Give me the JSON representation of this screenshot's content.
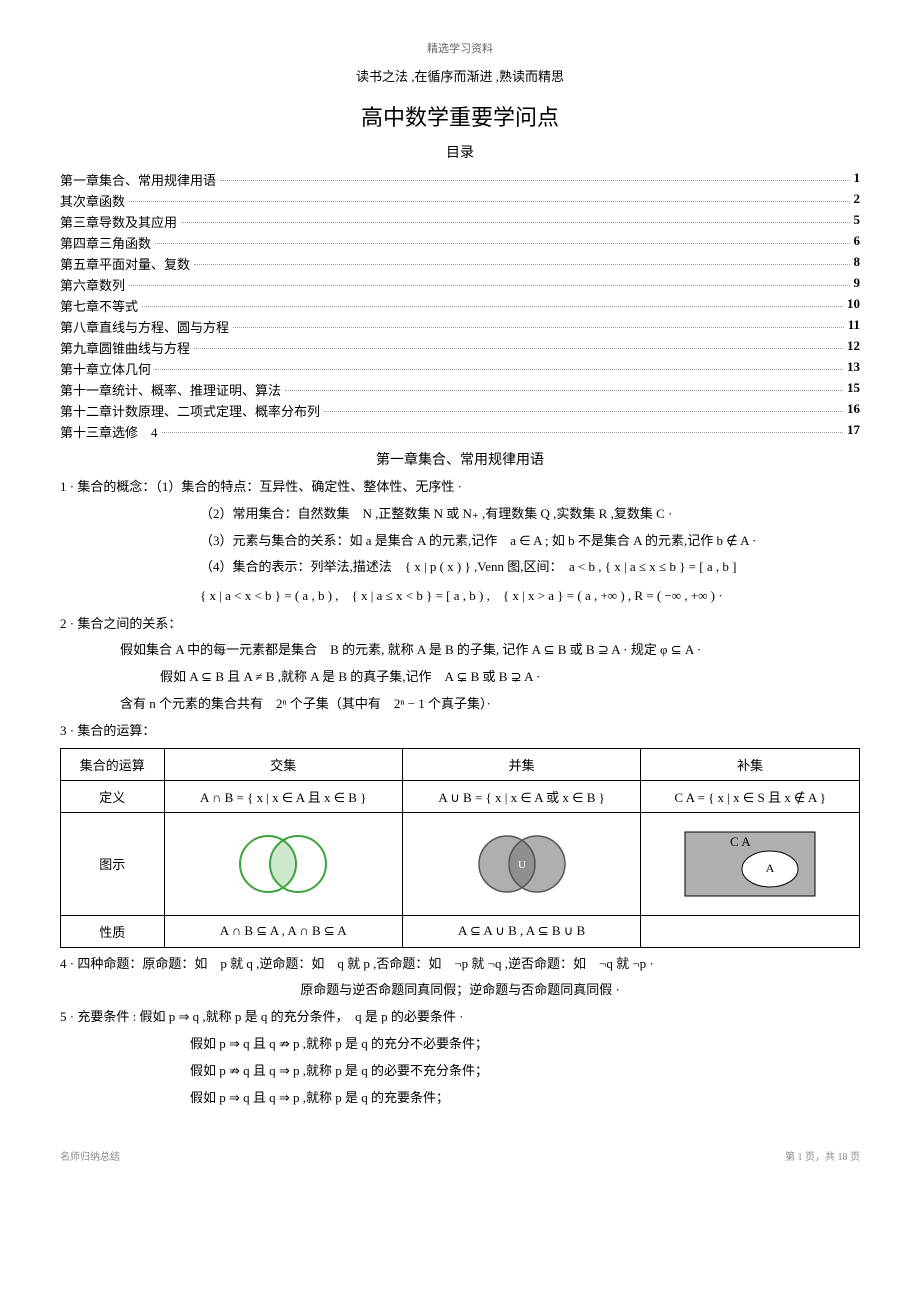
{
  "header_small": "精选学习资料",
  "subtitle": "读书之法 ,在循序而渐进 ,熟读而精思",
  "main_title": "高中数学重要学问点",
  "toc_title": "目录",
  "toc": [
    {
      "text": "第一章集合、常用规律用语",
      "page": "1"
    },
    {
      "text": "其次章函数",
      "page": "2"
    },
    {
      "text": "第三章导数及其应用",
      "page": "5"
    },
    {
      "text": "第四章三角函数",
      "page": "6"
    },
    {
      "text": "第五章平面对量、复数",
      "page": "8"
    },
    {
      "text": "第六章数列",
      "page": "9"
    },
    {
      "text": "第七章不等式",
      "page": "10"
    },
    {
      "text": "第八章直线与方程、圆与方程",
      "page": "11"
    },
    {
      "text": "第九章圆锥曲线与方程",
      "page": "12"
    },
    {
      "text": "第十章立体几何",
      "page": "13"
    },
    {
      "text": "第十一章统计、概率、推理证明、算法",
      "page": "15"
    },
    {
      "text": "第十二章计数原理、二项式定理、概率分布列",
      "page": "16"
    },
    {
      "text": "第十三章选修　4",
      "page": "17"
    }
  ],
  "chapter1_heading": "第一章集合、常用规律用语",
  "section1_line1": "1 · 集合的概念：（1）集合的特点：互异性、确定性、整体性、无序性 ·",
  "section1_line2": "（2）常用集合：自然数集　N ,正整数集 N 或 N₊ ,有理数集 Q ,实数集 R ,复数集 C ·",
  "section1_line3": "（3）元素与集合的关系：如 a 是集合 A 的元素,记作　a ∈ A ; 如 b 不是集合 A 的元素,记作 b ∉ A ·",
  "section1_line4": "（4）集合的表示：列举法,描述法　{ x | p ( x ) } ,Venn 图,区间：　a < b , { x | a ≤ x ≤ b } = [ a , b ]",
  "math_interval": "{ x | a < x < b } = ( a , b ) ,　{ x | a ≤ x < b } = [ a , b ) ,　{ x | x > a } = ( a , +∞ ) , R = ( −∞ , +∞ ) ·",
  "section2_heading": "2 · 集合之间的关系：",
  "section2_line1": "假如集合 A 中的每一元素都是集合　B 的元素, 就称 A 是 B 的子集, 记作 A ⊆ B 或 B ⊇ A · 规定 φ ⊆ A ·",
  "section2_line2": "假如 A ⊆ B 且 A ≠ B ,就称 A 是 B 的真子集,记作　A ⊊ B 或 B ⊋ A ·",
  "section2_line3": "含有 n 个元素的集合共有　2ⁿ 个子集（其中有　2ⁿ − 1 个真子集）·",
  "section3_heading": "3 · 集合的运算：",
  "table": {
    "headers": [
      "集合的运算",
      "交集",
      "并集",
      "补集"
    ],
    "row_def": "定义",
    "def_cells": [
      "A ∩ B = { x | x ∈ A 且 x ∈ B }",
      "A ∪ B = { x | x ∈ A 或 x ∈ B }",
      "C A = { x | x ∈ S 且 x ∉ A }"
    ],
    "row_diagram": "图示",
    "row_property": "性质",
    "prop_cells": [
      "A ∩ B ⊆ A , A ∩ B ⊆ A",
      "A ⊆ A ∪ B , A ⊆ B ∪ B",
      ""
    ],
    "venn_colors": {
      "intersection_outline": "#3aa33a",
      "union_fill": "#7a7a7a",
      "complement_bg": "#b0b0b0",
      "complement_circle": "#ffffff"
    }
  },
  "section4_line": "4 · 四种命题：原命题：如　p 就 q ,逆命题：如　q 就 p ,否命题：如　¬p 就 ¬q ,逆否命题：如　¬q 就 ¬p ·",
  "section4_line2": "原命题与逆否命题同真同假；逆命题与否命题同真同假 ·",
  "section5_line1": "5 · 充要条件 : 假如 p ⇒ q ,就称 p 是 q 的充分条件，　q 是 p 的必要条件 ·",
  "section5_line2": "假如 p ⇒ q 且 q ⇏ p ,就称 p 是 q 的充分不必要条件；",
  "section5_line3": "假如 p ⇏ q 且 q ⇒ p ,就称 p 是 q 的必要不充分条件；",
  "section5_line4": "假如 p ⇒ q 且 q ⇒ p ,就称 p 是 q 的充要条件；",
  "footer_left": "名师归纳总结",
  "footer_right": "第 1 页，共 18 页"
}
